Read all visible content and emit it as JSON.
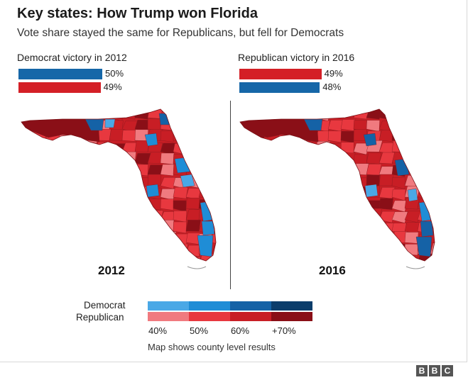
{
  "title": "Key states: How Trump won Florida",
  "subtitle": "Vote share stayed the same for Republicans, but fell for Democrats",
  "colors": {
    "dem_light": "#4aa8e6",
    "dem_mid": "#1f8dd6",
    "dem_dark": "#1562a6",
    "dem_darkest": "#0c3d6b",
    "rep_light": "#f07a7f",
    "rep_mid": "#e8383f",
    "rep_dark": "#c81e25",
    "rep_darkest": "#8a0f17",
    "bar_dem": "#1667a8",
    "bar_rep": "#d41f26"
  },
  "panels": [
    {
      "label": "Democrat victory in 2012",
      "year": "2012",
      "bars": [
        {
          "party": "Democrat",
          "value": 50,
          "value_label": "50%"
        },
        {
          "party": "Republican",
          "value": 49,
          "value_label": "49%"
        }
      ]
    },
    {
      "label": "Republican victory in 2016",
      "year": "2016",
      "bars": [
        {
          "party": "Republican",
          "value": 49,
          "value_label": "49%"
        },
        {
          "party": "Democrat",
          "value": 48,
          "value_label": "48%"
        }
      ]
    }
  ],
  "legend": {
    "democrat_label": "Democrat",
    "republican_label": "Republican",
    "ticks": [
      "40%",
      "50%",
      "60%",
      "+70%"
    ]
  },
  "footnote": "Map shows county level results",
  "logo": "BBC"
}
